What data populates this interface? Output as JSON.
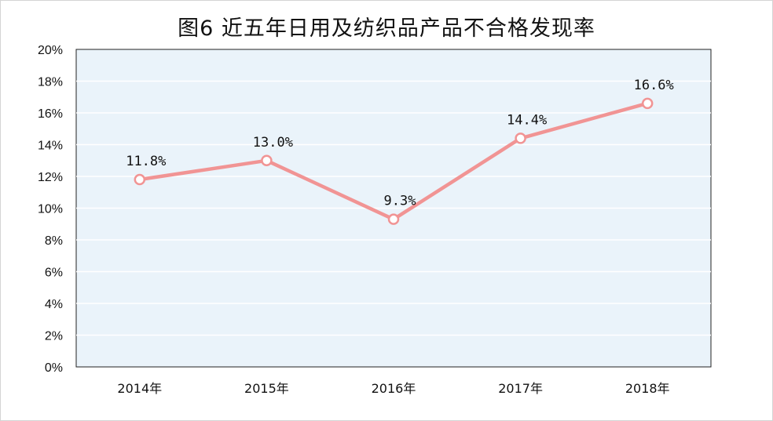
{
  "chart_data": {
    "type": "line",
    "title": "图6 近五年日用及纺织品产品不合格发现率",
    "categories": [
      "2014年",
      "2015年",
      "2016年",
      "2017年",
      "2018年"
    ],
    "values": [
      11.8,
      13.0,
      9.3,
      14.4,
      16.6
    ],
    "data_labels": [
      "11.8%",
      "13.0%",
      "9.3%",
      "14.4%",
      "16.6%"
    ],
    "yticks": [
      0,
      2,
      4,
      6,
      8,
      10,
      12,
      14,
      16,
      18,
      20
    ],
    "ytick_labels": [
      "0%",
      "2%",
      "4%",
      "6%",
      "8%",
      "10%",
      "12%",
      "14%",
      "16%",
      "18%",
      "20%"
    ],
    "ylim": [
      0,
      20
    ],
    "grid": true,
    "legend": "none",
    "colors": {
      "line": "#f19494",
      "marker_fill": "#ffffff",
      "plot_bg": "#eaf3fa",
      "grid": "#ffffff",
      "axis": "#222222"
    }
  }
}
